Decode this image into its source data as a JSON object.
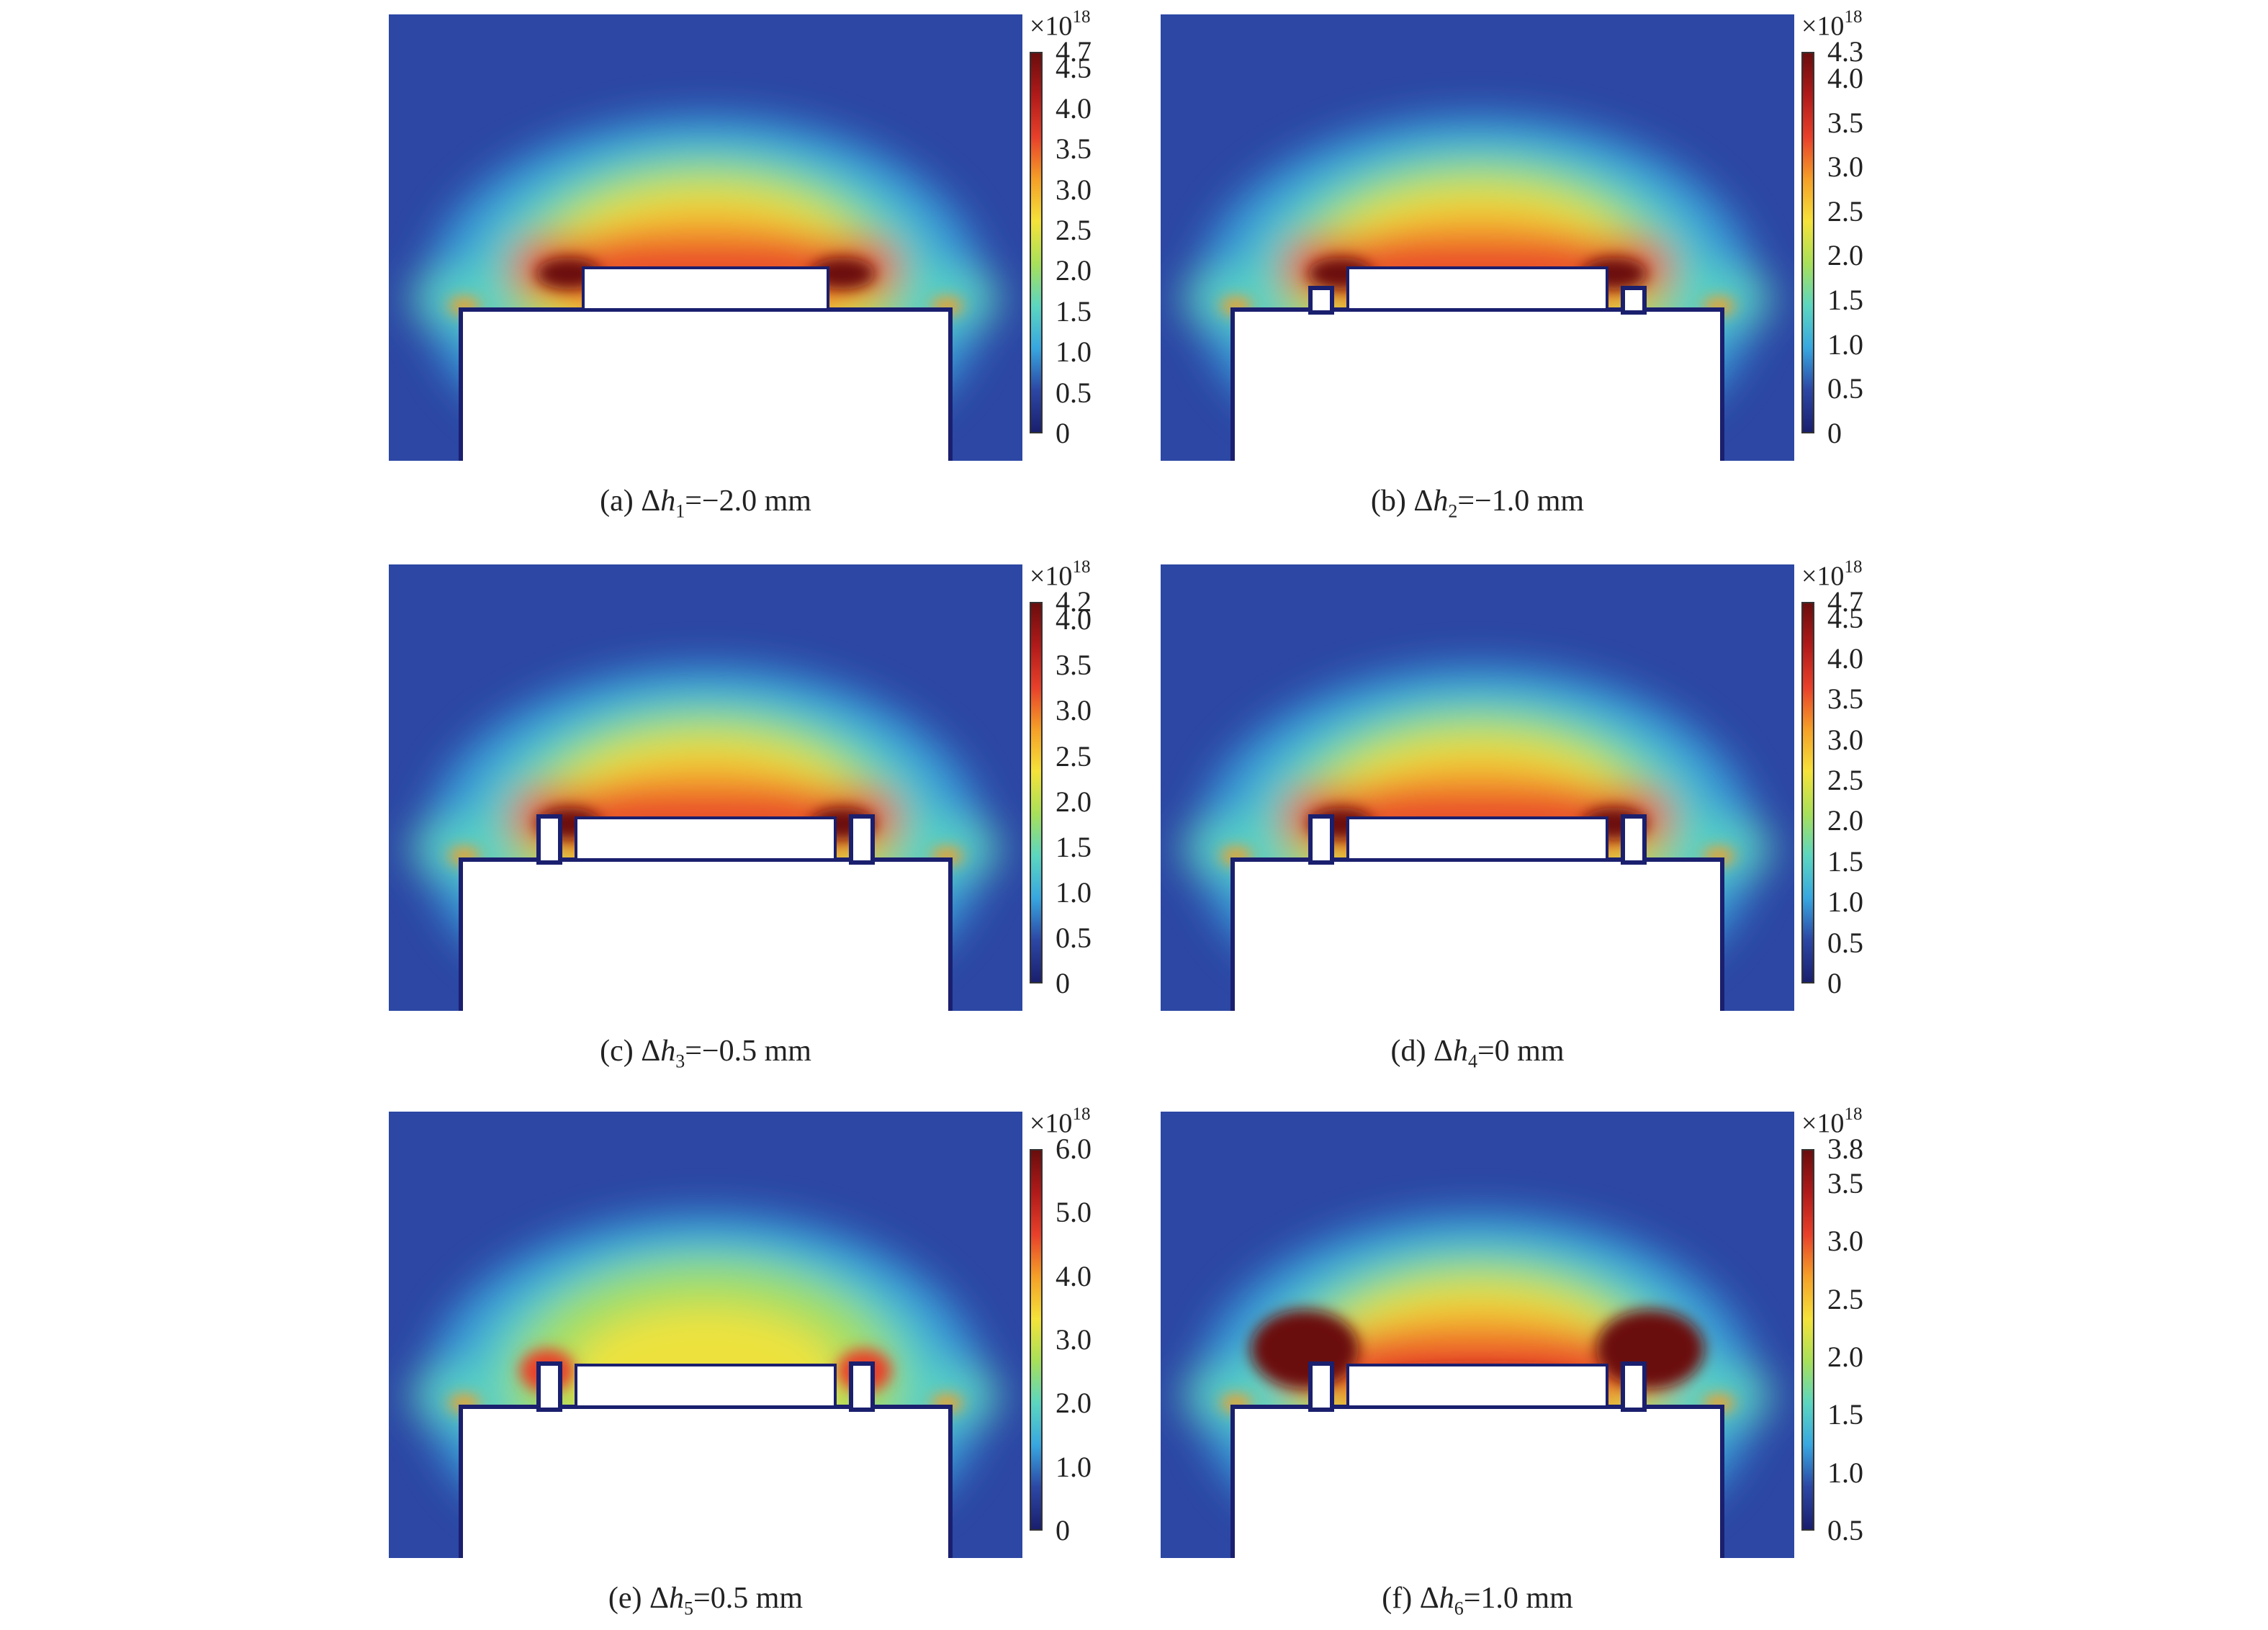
{
  "colormap": [
    "#1a1f6e",
    "#2c47a4",
    "#38a7e0",
    "#5cd6c0",
    "#a8e05a",
    "#f5e23a",
    "#f5a028",
    "#e8402a",
    "#b01a1a",
    "#6a0d0d"
  ],
  "panels": [
    {
      "id": "a",
      "caption": {
        "prefix": "(a) Δ",
        "var": "h",
        "sub": "1",
        "value": "=−2.0 mm"
      },
      "colorbar": {
        "multiplier": "×10",
        "exponent": "18",
        "min": 0,
        "max": 4.7,
        "ticks": [
          "4.7",
          "4.5",
          "4.0",
          "3.5",
          "3.0",
          "2.5",
          "2.0",
          "1.5",
          "1.0",
          "0.5",
          "0"
        ]
      },
      "pillars": false
    },
    {
      "id": "b",
      "caption": {
        "prefix": "(b) Δ",
        "var": "h",
        "sub": "2",
        "value": "=−1.0 mm"
      },
      "colorbar": {
        "multiplier": "×10",
        "exponent": "18",
        "min": 0,
        "max": 4.3,
        "ticks": [
          "4.3",
          "4.0",
          "3.5",
          "3.0",
          "2.5",
          "2.0",
          "1.5",
          "1.0",
          "0.5",
          "0"
        ]
      },
      "pillars": true
    },
    {
      "id": "c",
      "caption": {
        "prefix": "(c) Δ",
        "var": "h",
        "sub": "3",
        "value": "=−0.5 mm"
      },
      "colorbar": {
        "multiplier": "×10",
        "exponent": "18",
        "min": 0,
        "max": 4.2,
        "ticks": [
          "4.2",
          "4.0",
          "3.5",
          "3.0",
          "2.5",
          "2.0",
          "1.5",
          "1.0",
          "0.5",
          "0"
        ]
      },
      "pillars": true
    },
    {
      "id": "d",
      "caption": {
        "prefix": "(d) Δ",
        "var": "h",
        "sub": "4",
        "value": "=0 mm"
      },
      "colorbar": {
        "multiplier": "×10",
        "exponent": "18",
        "min": 0,
        "max": 4.7,
        "ticks": [
          "4.7",
          "4.5",
          "4.0",
          "3.5",
          "3.0",
          "2.5",
          "2.0",
          "1.5",
          "1.0",
          "0.5",
          "0"
        ]
      },
      "pillars": true
    },
    {
      "id": "e",
      "caption": {
        "prefix": "(e) Δ",
        "var": "h",
        "sub": "5",
        "value": "=0.5 mm"
      },
      "colorbar": {
        "multiplier": "×10",
        "exponent": "18",
        "min": 0,
        "max": 6.0,
        "ticks": [
          "6.0",
          "5.0",
          "4.0",
          "3.0",
          "2.0",
          "1.0",
          "0"
        ]
      },
      "pillars": true
    },
    {
      "id": "f",
      "caption": {
        "prefix": "(f) Δ",
        "var": "h",
        "sub": "6",
        "value": "=1.0 mm"
      },
      "colorbar": {
        "multiplier": "×10",
        "exponent": "18",
        "min": 0.5,
        "max": 3.8,
        "ticks": [
          "3.8",
          "3.5",
          "3.0",
          "2.5",
          "2.0",
          "1.5",
          "1.0",
          "0.5"
        ]
      },
      "pillars": true
    }
  ]
}
